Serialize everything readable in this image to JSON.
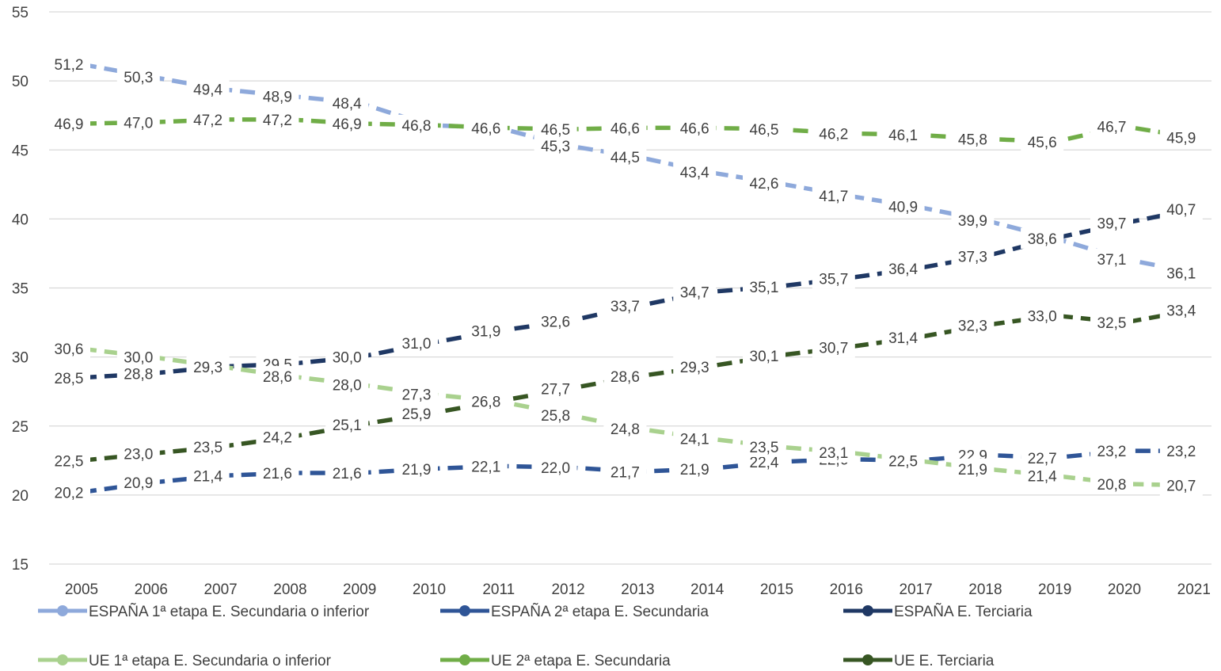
{
  "chart_data": {
    "type": "line",
    "title": "",
    "xlabel": "",
    "ylabel": "",
    "ylim": [
      15,
      55
    ],
    "yticks": [
      "15",
      "20",
      "25",
      "30",
      "35",
      "40",
      "45",
      "50",
      "55"
    ],
    "grid": true,
    "line_style": "dashed",
    "legend_position": "bottom",
    "categories": [
      "2005",
      "2006",
      "2007",
      "2008",
      "2009",
      "2010",
      "2011",
      "2012",
      "2013",
      "2014",
      "2015",
      "2016",
      "2017",
      "2018",
      "2019",
      "2020",
      "2021"
    ],
    "series": [
      {
        "name": "ESPAÑA 1ª etapa E. Secundaria o inferior",
        "color": "#8EA9DB",
        "values": [
          51.2,
          50.3,
          49.4,
          48.9,
          48.4,
          46.8,
          46.6,
          45.3,
          44.5,
          43.4,
          42.6,
          41.7,
          40.9,
          39.9,
          38.6,
          37.1,
          36.1
        ],
        "labels": [
          "51,2",
          "50,3",
          "49,4",
          "48,9",
          "48,4",
          "46,8",
          "46,6",
          "45,3",
          "44,5",
          "43,4",
          "42,6",
          "41,7",
          "40,9",
          "39,9",
          "38,6",
          "37,1",
          "36,1"
        ]
      },
      {
        "name": "ESPAÑA 2ª etapa E. Secundaria",
        "color": "#2F5597",
        "values": [
          20.2,
          20.9,
          21.4,
          21.6,
          21.6,
          21.9,
          22.1,
          22.0,
          21.7,
          21.9,
          22.4,
          22.6,
          22.5,
          22.9,
          22.7,
          23.2,
          23.2
        ],
        "labels": [
          "20,2",
          "20,9",
          "21,4",
          "21,6",
          "21,6",
          "21,9",
          "22,1",
          "22,0",
          "21,7",
          "21,9",
          "22,4",
          "22,6",
          "22,5",
          "22.9",
          "22,7",
          "23,2",
          "23,2"
        ]
      },
      {
        "name": "ESPAÑA E. Terciaria",
        "color": "#1F3864",
        "values": [
          28.5,
          28.8,
          29.3,
          29.5,
          30.0,
          31.0,
          31.9,
          32.6,
          33.7,
          34.7,
          35.1,
          35.7,
          36.4,
          37.3,
          38.6,
          39.7,
          40.7
        ],
        "labels": [
          "28,5",
          "28,8",
          "29,3",
          "29,5",
          "30,0",
          "31,0",
          "31,9",
          "32,6",
          "33,7",
          "34,7",
          "35,1",
          "35,7",
          "36,4",
          "37,3",
          "38,6",
          "39,7",
          "40,7"
        ]
      },
      {
        "name": "UE 1ª etapa E. Secundaria o inferior",
        "color": "#A9D18E",
        "values": [
          30.6,
          30.0,
          29.3,
          28.6,
          28.0,
          27.3,
          26.8,
          25.8,
          24.8,
          24.1,
          23.5,
          23.1,
          22.5,
          21.9,
          21.4,
          20.8,
          20.7
        ],
        "labels": [
          "30,6",
          "30,0",
          "29,3",
          "28,6",
          "28,0",
          "27,3",
          "26,8",
          "25,8",
          "24,8",
          "24,1",
          "23,5",
          "23,1",
          "22,5",
          "21,9",
          "21,4",
          "20,8",
          "20,7"
        ]
      },
      {
        "name": "UE 2ª etapa E. Secundaria",
        "color": "#70AD47",
        "values": [
          46.9,
          47.0,
          47.2,
          47.2,
          46.9,
          46.8,
          46.6,
          46.5,
          46.6,
          46.6,
          46.5,
          46.2,
          46.1,
          45.8,
          45.6,
          46.7,
          45.9
        ],
        "labels": [
          "46,9",
          "47,0",
          "47,2",
          "47,2",
          "46,9",
          "46,8",
          "46,6",
          "46,5",
          "46,6",
          "46,6",
          "46,5",
          "46,2",
          "46,1",
          "45,8",
          "45,6",
          "46,7",
          "45,9"
        ]
      },
      {
        "name": "UE E. Terciaria",
        "color": "#375623",
        "values": [
          22.5,
          23.0,
          23.5,
          24.2,
          25.1,
          25.9,
          26.8,
          27.7,
          28.6,
          29.3,
          30.1,
          30.7,
          31.4,
          32.3,
          33.0,
          32.5,
          33.4
        ],
        "labels": [
          "22,5",
          "23,0",
          "23,5",
          "24,2",
          "25,1",
          "25,9",
          "26,8",
          "27,7",
          "28,6",
          "29,3",
          "30,1",
          "30,7",
          "31,4",
          "32,3",
          "33,0",
          "32,5",
          "33,4"
        ]
      }
    ]
  }
}
